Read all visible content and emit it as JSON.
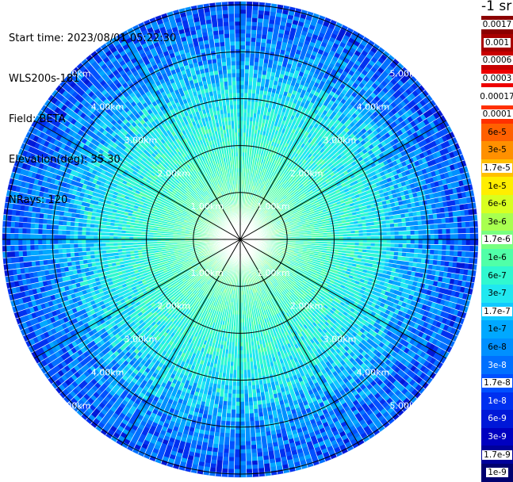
{
  "header": {
    "start_time": "Start time: 2023/08/01 05:22:30",
    "instrument": "WLS200s-181",
    "field": "Field: BETA",
    "elevation": "Elevation(deg): 35.30",
    "nrays": "NRays: 120"
  },
  "colorbar": {
    "title": "-1 sr",
    "levels": [
      {
        "label": "0.0017",
        "color": "#8b0000",
        "text_bg": "#ffffff"
      },
      {
        "label": "0.001",
        "color": "#a80000",
        "text_bg": "#ffffff"
      },
      {
        "label": "0.0006",
        "color": "#c80000",
        "text_bg": "#ffffff"
      },
      {
        "label": "0.0003",
        "color": "#ee0000",
        "text_bg": "#ffffff"
      },
      {
        "label": "0.00017",
        "color": "#ffffff",
        "text_bg": "#ffffff"
      },
      {
        "label": "0.0001",
        "color": "#ff3000",
        "text_bg": "#ffffff"
      },
      {
        "label": "6e-5",
        "color": "#ff6000",
        "text_bg": "#ff6000"
      },
      {
        "label": "3e-5",
        "color": "#ff9000",
        "text_bg": "#ff9000"
      },
      {
        "label": "1.7e-5",
        "color": "#ffc000",
        "text_bg": "#ffffff"
      },
      {
        "label": "1e-5",
        "color": "#ffee00",
        "text_bg": "#ffee00"
      },
      {
        "label": "6e-6",
        "color": "#d8ff20",
        "text_bg": "#d8ff20"
      },
      {
        "label": "3e-6",
        "color": "#a8ff50",
        "text_bg": "#a8ff50"
      },
      {
        "label": "1.7e-6",
        "color": "#78ff80",
        "text_bg": "#ffffff"
      },
      {
        "label": "1e-6",
        "color": "#50ffa8",
        "text_bg": "#50ffa8"
      },
      {
        "label": "6e-7",
        "color": "#30f8d0",
        "text_bg": "#30f8d0"
      },
      {
        "label": "3e-7",
        "color": "#20e8f0",
        "text_bg": "#20e8f0"
      },
      {
        "label": "1.7e-7",
        "color": "#10c8ff",
        "text_bg": "#ffffff"
      },
      {
        "label": "1e-7",
        "color": "#00a8ff",
        "text_bg": "#00a8ff"
      },
      {
        "label": "6e-8",
        "color": "#0090ff",
        "text_bg": "#0090ff"
      },
      {
        "label": "3e-8",
        "color": "#0070ff",
        "text_bg": "#0070ff"
      },
      {
        "label": "1.7e-8",
        "color": "#0050ff",
        "text_bg": "#ffffff"
      },
      {
        "label": "1e-8",
        "color": "#0030f0",
        "text_bg": "#0030f0"
      },
      {
        "label": "6e-9",
        "color": "#0018d8",
        "text_bg": "#0018d8"
      },
      {
        "label": "3e-9",
        "color": "#0000c0",
        "text_bg": "#0000c0"
      },
      {
        "label": "1.7e-9",
        "color": "#00009a",
        "text_bg": "#ffffff"
      },
      {
        "label": "1e-9",
        "color": "#000070",
        "text_bg": "#ffffff"
      }
    ]
  },
  "ppi": {
    "range_ring_labels": [
      "1.00km",
      "2.00km",
      "3.00km",
      "4.00km",
      "5.00km"
    ],
    "n_rays": 120,
    "field_profile": [
      {
        "range_km": 0.0,
        "value": "1.7e-6"
      },
      {
        "range_km": 1.0,
        "value": "1e-6"
      },
      {
        "range_km": 2.0,
        "value": "6e-7"
      },
      {
        "range_km": 3.0,
        "value": "3e-7"
      },
      {
        "range_km": 4.0,
        "value": "6e-8"
      },
      {
        "range_km": 5.0,
        "value": "1.7e-8"
      }
    ]
  }
}
